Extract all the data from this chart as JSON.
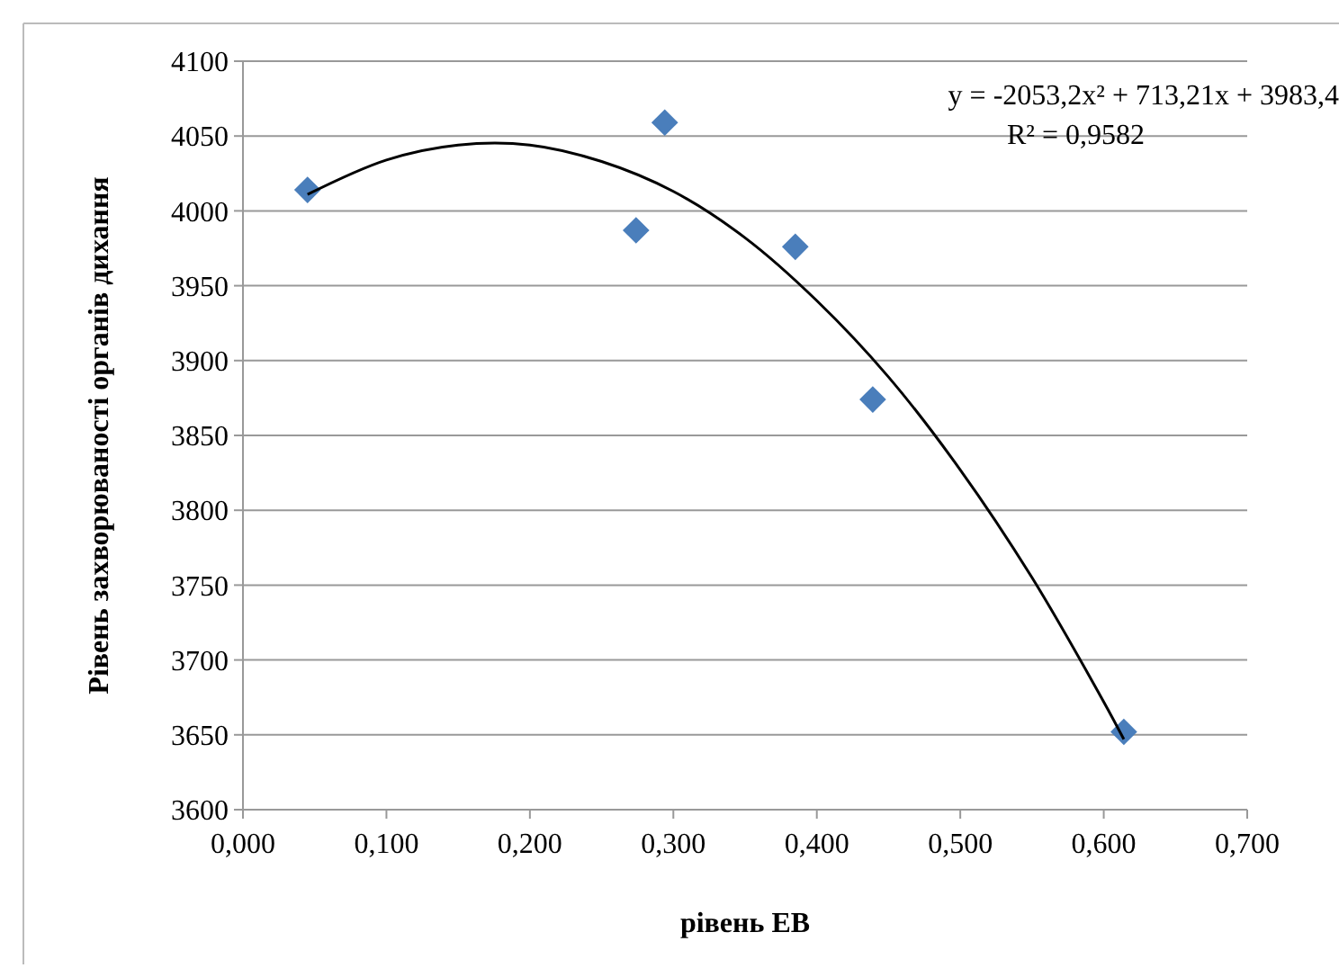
{
  "chart_data": {
    "type": "scatter",
    "xlabel": "рівень ЕВ",
    "ylabel": "Рівень захворюваності органів дихання",
    "xlim": [
      0,
      0.7
    ],
    "xticks": [
      {
        "value": 0,
        "label": "0,000"
      },
      {
        "value": 0.1,
        "label": "0,100"
      },
      {
        "value": 0.2,
        "label": "0,200"
      },
      {
        "value": 0.3,
        "label": "0,300"
      },
      {
        "value": 0.4,
        "label": "0,400"
      },
      {
        "value": 0.5,
        "label": "0,500"
      },
      {
        "value": 0.6,
        "label": "0,600"
      },
      {
        "value": 0.7,
        "label": "0,700"
      }
    ],
    "ylim": [
      3600,
      4100
    ],
    "yticks": [
      3600,
      3650,
      3700,
      3750,
      3800,
      3850,
      3900,
      3950,
      4000,
      4050,
      4100
    ],
    "grid": "y",
    "marker": "diamond",
    "series": [
      {
        "color": "#4a7ebb",
        "x": [
          0.045,
          0.274,
          0.294,
          0.385,
          0.439,
          0.614
        ],
        "values": [
          4014,
          3987,
          4059,
          3976,
          3874,
          3652
        ]
      },
      {
        "type": "line",
        "color": "#000000",
        "marker": "none",
        "x": [
          0.045,
          0.1,
          0.15,
          0.2,
          0.25,
          0.3,
          0.35,
          0.4,
          0.45,
          0.5,
          0.55,
          0.6,
          0.614
        ],
        "values": [
          4011,
          4034,
          4044,
          4044,
          4033,
          4013,
          3982,
          3940,
          3889,
          3827,
          3755,
          3672,
          3647
        ]
      }
    ],
    "annotations": [
      "y = -2053,2x² + 713,21x + 3983,4",
      "R² = 0,9582"
    ]
  }
}
